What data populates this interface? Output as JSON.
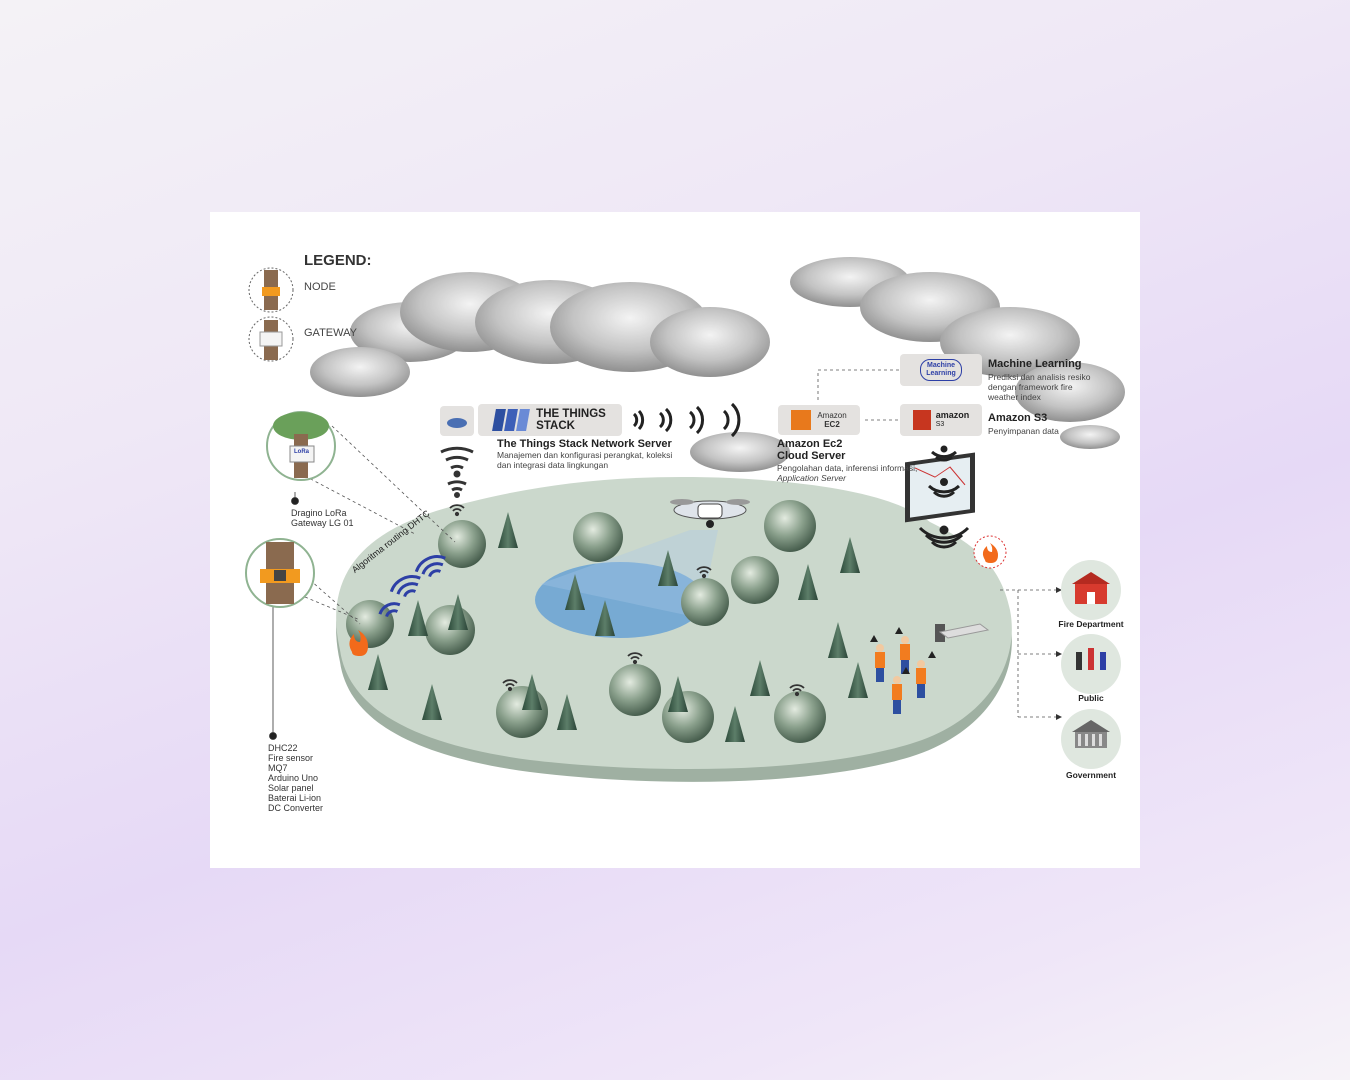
{
  "legend": {
    "title": "LEGEND:",
    "items": [
      {
        "label": "NODE"
      },
      {
        "label": "GATEWAY"
      }
    ]
  },
  "gateway": {
    "name_line1": "Dragino LoRa",
    "name_line2": "Gateway LG 01",
    "badge": "LoRa"
  },
  "node": {
    "components": [
      "DHC22",
      "Fire sensor",
      "MQ7",
      "Arduino Uno",
      "Solar panel",
      "Baterai Li-ion",
      "DC Converter"
    ]
  },
  "path_label": "Algoritma routing DHTC",
  "things_stack": {
    "logo_line1": "THE THINGS",
    "logo_line2": "STACK",
    "title": "The Things Stack Network Server",
    "desc": "Manajemen dan konfigurasi perangkat, koleksi dan integrasi data lingkungan"
  },
  "ec2": {
    "badge_line1": "Amazon",
    "badge_line2": "EC2",
    "title_line1": "Amazon Ec2",
    "title_line2": "Cloud Server",
    "desc": "Pengolahan data, inferensi informasi,",
    "desc_italic": "Application Server"
  },
  "ml": {
    "badge_line1": "Machine",
    "badge_line2": "Learning",
    "title": "Machine Learning",
    "desc": "Prediksi dan analisis resiko dengan framework fire weather index"
  },
  "s3": {
    "badge_line1": "amazon",
    "badge_line2": "S3",
    "title": "Amazon S3",
    "desc": "Penyimpanan data"
  },
  "outputs": [
    {
      "label": "Fire Department"
    },
    {
      "label": "Public"
    },
    {
      "label": "Government"
    }
  ],
  "colors": {
    "island": "#cbd8cc",
    "island_edge": "#9fb0a2",
    "water": "#5b9bd6",
    "signal": "#2d3fa6",
    "node_orange": "#f29a1f",
    "tree": "#4b6a55"
  }
}
